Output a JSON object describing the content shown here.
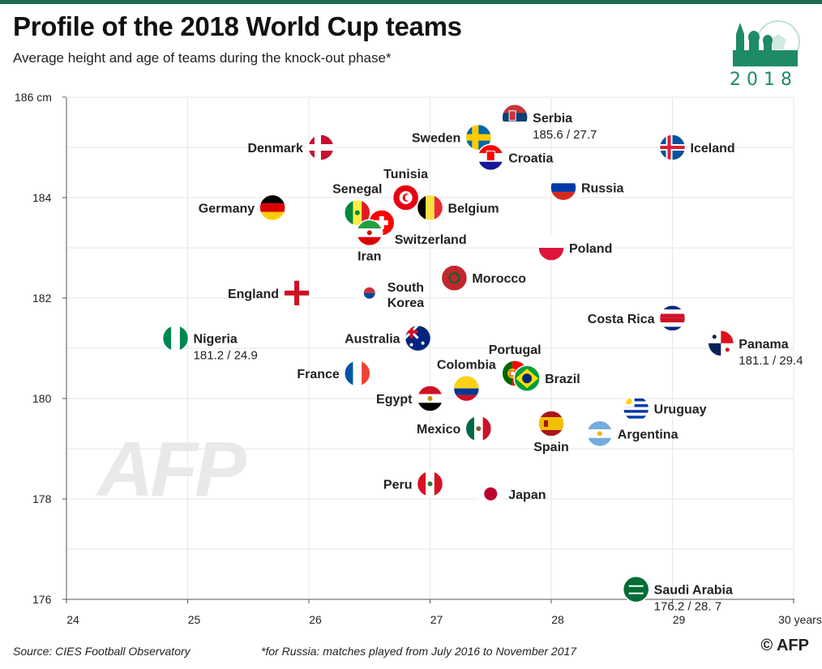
{
  "title": "Profile of the 2018 World Cup teams",
  "subtitle": "Average height and age of teams during the knock-out phase*",
  "source": "Source: CIES Football Observatory",
  "footnote": "*for Russia: matches played from July 2016 to November 2017",
  "credit": "© AFP",
  "logo": {
    "year": "2018",
    "watermark": "AFP"
  },
  "chart_data": {
    "type": "scatter",
    "xlabel": "",
    "ylabel": "",
    "xlim": [
      24,
      30
    ],
    "ylim": [
      176,
      186
    ],
    "x_ticks": [
      "24",
      "25",
      "26",
      "27",
      "28",
      "29",
      "30 years"
    ],
    "y_ticks": [
      "176",
      "178",
      "180",
      "182",
      "184",
      "186 cm"
    ],
    "grid": true,
    "points": [
      {
        "team": "Serbia",
        "x": 27.7,
        "y": 185.6,
        "label": "Serbia",
        "value": "185.6 / 27.7",
        "flag": "serbia"
      },
      {
        "team": "Sweden",
        "x": 27.4,
        "y": 185.2,
        "label": "Sweden",
        "flag": "sweden"
      },
      {
        "team": "Croatia",
        "x": 27.5,
        "y": 184.8,
        "label": "Croatia",
        "flag": "croatia"
      },
      {
        "team": "Iceland",
        "x": 29.0,
        "y": 185.0,
        "label": "Iceland",
        "flag": "iceland"
      },
      {
        "team": "Denmark",
        "x": 26.1,
        "y": 185.0,
        "label": "Denmark",
        "flag": "denmark"
      },
      {
        "team": "Russia",
        "x": 28.1,
        "y": 184.2,
        "label": "Russia",
        "flag": "russia"
      },
      {
        "team": "Tunisia",
        "x": 26.8,
        "y": 184.0,
        "label": "Tunisia",
        "flag": "tunisia"
      },
      {
        "team": "Belgium",
        "x": 27.0,
        "y": 183.8,
        "label": "Belgium",
        "flag": "belgium"
      },
      {
        "team": "Germany",
        "x": 25.7,
        "y": 183.8,
        "label": "Germany",
        "flag": "germany"
      },
      {
        "team": "Senegal",
        "x": 26.4,
        "y": 183.7,
        "label": "Senegal",
        "flag": "senegal"
      },
      {
        "team": "Switzerland",
        "x": 26.6,
        "y": 183.5,
        "label": "Switzerland",
        "flag": "switzerland"
      },
      {
        "team": "Iran",
        "x": 26.5,
        "y": 183.3,
        "label": "Iran",
        "flag": "iran"
      },
      {
        "team": "Poland",
        "x": 28.0,
        "y": 183.0,
        "label": "Poland",
        "flag": "poland"
      },
      {
        "team": "Morocco",
        "x": 27.2,
        "y": 182.4,
        "label": "Morocco",
        "flag": "morocco"
      },
      {
        "team": "South Korea",
        "x": 26.5,
        "y": 182.1,
        "label": "South\nKorea",
        "flag": "korea"
      },
      {
        "team": "England",
        "x": 25.9,
        "y": 182.1,
        "label": "England",
        "flag": "england"
      },
      {
        "team": "Costa Rica",
        "x": 29.0,
        "y": 181.6,
        "label": "Costa Rica",
        "flag": "costarica"
      },
      {
        "team": "Nigeria",
        "x": 24.9,
        "y": 181.2,
        "label": "Nigeria",
        "value": "181.2 / 24.9",
        "flag": "nigeria"
      },
      {
        "team": "Australia",
        "x": 26.9,
        "y": 181.2,
        "label": "Australia",
        "flag": "australia"
      },
      {
        "team": "Panama",
        "x": 29.4,
        "y": 181.1,
        "label": "Panama",
        "value": "181.1 / 29.4",
        "flag": "panama"
      },
      {
        "team": "Portugal",
        "x": 27.7,
        "y": 180.5,
        "label": "Portugal",
        "flag": "portugal"
      },
      {
        "team": "Brazil",
        "x": 27.8,
        "y": 180.4,
        "label": "Brazil",
        "flag": "brazil"
      },
      {
        "team": "France",
        "x": 26.4,
        "y": 180.5,
        "label": "France",
        "flag": "france"
      },
      {
        "team": "Colombia",
        "x": 27.3,
        "y": 180.2,
        "label": "Colombia",
        "flag": "colombia"
      },
      {
        "team": "Egypt",
        "x": 27.0,
        "y": 180.0,
        "label": "Egypt",
        "flag": "egypt"
      },
      {
        "team": "Uruguay",
        "x": 28.7,
        "y": 179.8,
        "label": "Uruguay",
        "flag": "uruguay"
      },
      {
        "team": "Mexico",
        "x": 27.4,
        "y": 179.4,
        "label": "Mexico",
        "flag": "mexico"
      },
      {
        "team": "Spain",
        "x": 28.0,
        "y": 179.5,
        "label": "Spain",
        "flag": "spain"
      },
      {
        "team": "Argentina",
        "x": 28.4,
        "y": 179.3,
        "label": "Argentina",
        "flag": "argentina"
      },
      {
        "team": "Peru",
        "x": 27.0,
        "y": 178.3,
        "label": "Peru",
        "flag": "peru"
      },
      {
        "team": "Japan",
        "x": 27.5,
        "y": 178.1,
        "label": "Japan",
        "flag": "japan"
      },
      {
        "team": "Saudi Arabia",
        "x": 28.7,
        "y": 176.2,
        "label": "Saudi Arabia",
        "value": "176.2 / 28. 7",
        "flag": "saudi"
      }
    ]
  }
}
